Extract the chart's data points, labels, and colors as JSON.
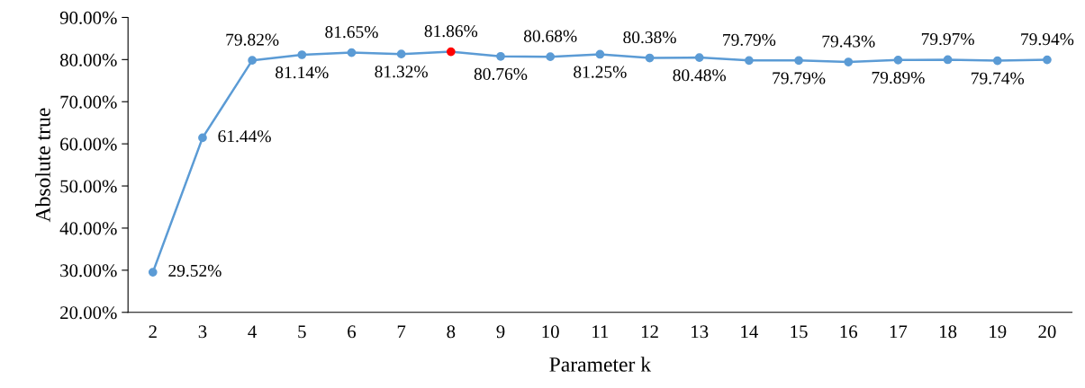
{
  "chart_data": {
    "type": "line",
    "xlabel": "Parameter k",
    "ylabel": "Absolute true",
    "categories": [
      "2",
      "3",
      "4",
      "5",
      "6",
      "7",
      "8",
      "9",
      "10",
      "11",
      "12",
      "13",
      "14",
      "15",
      "16",
      "17",
      "18",
      "19",
      "20"
    ],
    "series": [
      {
        "color": "#5b9bd5",
        "colors": [
          "#5b9bd5",
          "#5b9bd5",
          "#5b9bd5",
          "#5b9bd5",
          "#5b9bd5",
          "#5b9bd5",
          "#ff0000",
          "#5b9bd5",
          "#5b9bd5",
          "#5b9bd5",
          "#5b9bd5",
          "#5b9bd5",
          "#5b9bd5",
          "#5b9bd5",
          "#5b9bd5",
          "#5b9bd5",
          "#5b9bd5",
          "#5b9bd5",
          "#5b9bd5"
        ],
        "values": [
          29.52,
          61.44,
          79.82,
          81.14,
          81.65,
          81.32,
          81.86,
          80.76,
          80.68,
          81.25,
          80.38,
          80.48,
          79.79,
          79.79,
          79.43,
          79.89,
          79.97,
          79.74,
          79.94
        ],
        "value_labels": [
          "29.52%",
          "61.44%",
          "79.82%",
          "81.14%",
          "81.65%",
          "81.32%",
          "81.86%",
          "80.76%",
          "80.68%",
          "81.25%",
          "80.38%",
          "80.48%",
          "79.79%",
          "79.79%",
          "79.43%",
          "79.89%",
          "79.97%",
          "79.74%",
          "79.94%"
        ]
      }
    ],
    "ylim": [
      20,
      90
    ],
    "yticks": [
      {
        "value": 20,
        "label": "20.00%"
      },
      {
        "value": 30,
        "label": "30.00%"
      },
      {
        "value": 40,
        "label": "40.00%"
      },
      {
        "value": 50,
        "label": "50.00%"
      },
      {
        "value": 60,
        "label": "60.00%"
      },
      {
        "value": 70,
        "label": "70.00%"
      },
      {
        "value": 80,
        "label": "80.00%"
      },
      {
        "value": 90,
        "label": "90.00%"
      }
    ],
    "marker": "circle",
    "line_style": "solid",
    "grid": false,
    "legend": false
  }
}
